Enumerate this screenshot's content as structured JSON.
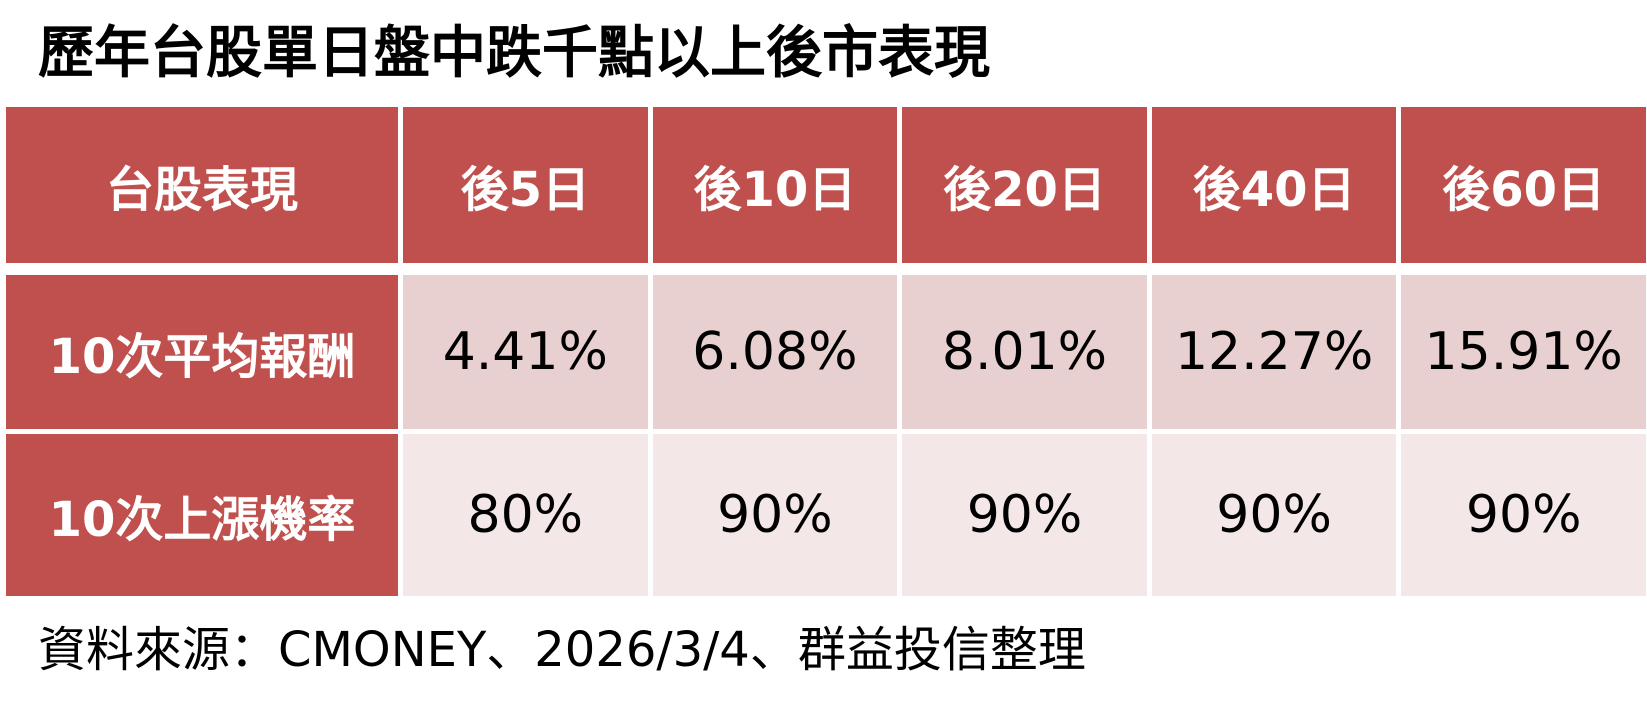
{
  "title": "歷年台股單日盤中跌千點以上後市表現",
  "table": {
    "headers": [
      "台股表現",
      "後5日",
      "後10日",
      "後20日",
      "後40日",
      "後60日"
    ],
    "rows": [
      {
        "label": "10次平均報酬",
        "values": [
          "4.41%",
          "6.08%",
          "8.01%",
          "12.27%",
          "15.91%"
        ]
      },
      {
        "label": "10次上漲機率",
        "values": [
          "80%",
          "90%",
          "90%",
          "90%",
          "90%"
        ]
      }
    ]
  },
  "source": "資料來源：CMONEY、2026/3/4、群益投信整理",
  "colors": {
    "header_bg": "#c0504d",
    "row1_bg": "#e8d0d1",
    "row2_bg": "#f3e7e7"
  }
}
